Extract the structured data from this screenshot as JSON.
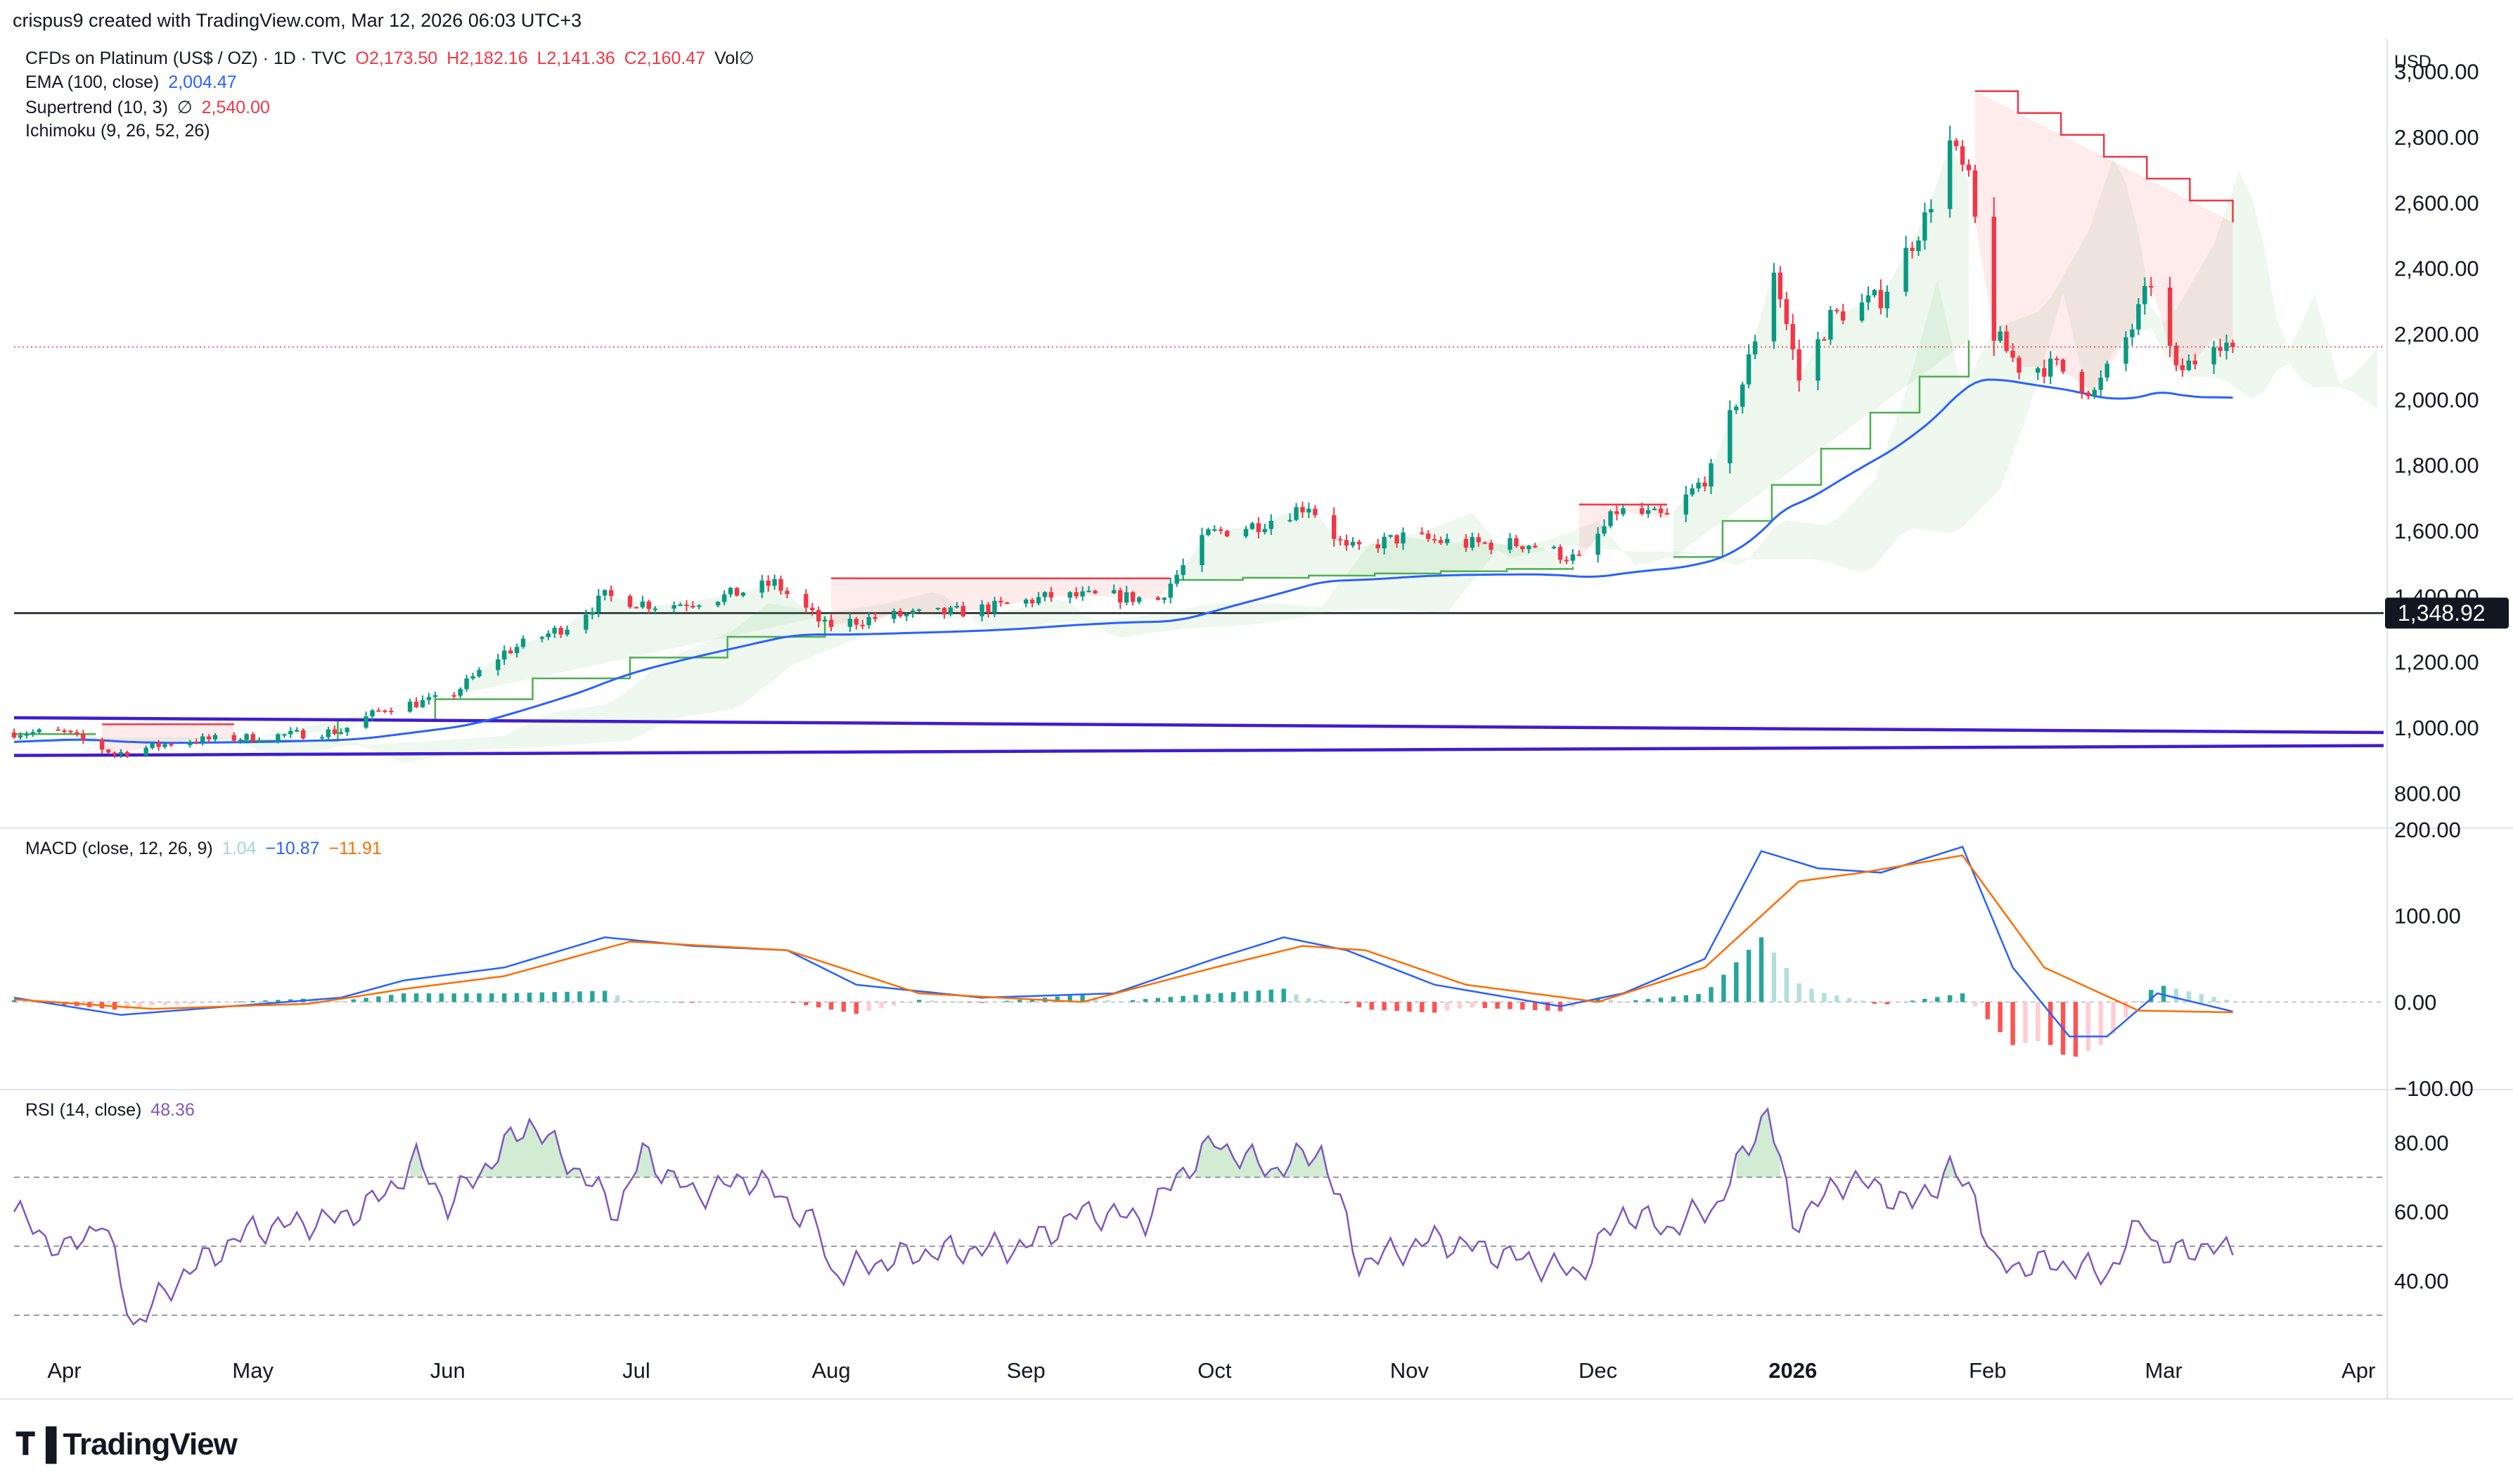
{
  "header": {
    "text": "crispus9 created with TradingView.com, Mar 12, 2026 06:03 UTC+3"
  },
  "legend": {
    "symbol": "CFDs on Platinum (US$ / OZ) · 1D · TVC",
    "ohlc": {
      "o": "O2,173.50",
      "h": "H2,182.16",
      "l": "L2,141.36",
      "c": "C2,160.47",
      "vol": "Vol∅"
    },
    "ema": {
      "label": "EMA (100, close)",
      "value": "2,004.47"
    },
    "supertrend": {
      "label": "Supertrend (10, 3)",
      "dir": "∅",
      "value": "2,540.00"
    },
    "ichimoku": {
      "label": "Ichimoku (9, 26, 52, 26)"
    },
    "macd": {
      "label": "MACD (close, 12, 26, 9)",
      "hist": "1.04",
      "macd": "−10.87",
      "signal": "−11.91"
    },
    "rsi": {
      "label": "RSI (14, close)",
      "value": "48.36"
    }
  },
  "currency_label": "USD",
  "price_marker": "1,348.92",
  "brand": {
    "text": "TradingView"
  },
  "colors": {
    "up": "#089981",
    "down": "#f23645",
    "ema": "#2962ff",
    "signal": "#ff6d00",
    "rsi": "#7e57c2",
    "trendline": "#3f1dcb",
    "supertrend_up": "#4caf50",
    "supertrend_down": "#f23645"
  },
  "chart_data": [
    {
      "type": "candlestick",
      "title": "CFDs on Platinum (US$ / OZ) · 1D · TVC",
      "ylim": [
        700,
        3100
      ],
      "y_ticks": [
        "800.00",
        "1,000.00",
        "1,200.00",
        "1,400.00",
        "1,600.00",
        "1,800.00",
        "2,000.00",
        "2,200.00",
        "2,400.00",
        "2,600.00",
        "2,800.00",
        "3,000.00"
      ],
      "x_ticks": [
        "Apr",
        "May",
        "Jun",
        "Jul",
        "Aug",
        "Sep",
        "Oct",
        "Nov",
        "Dec",
        "2026",
        "Feb",
        "Mar",
        "Apr"
      ],
      "price_keypoints": [
        [
          "2025-03-24",
          985
        ],
        [
          "2025-04-01",
          985
        ],
        [
          "2025-04-09",
          920
        ],
        [
          "2025-04-20",
          960
        ],
        [
          "2025-05-01",
          970
        ],
        [
          "2025-05-15",
          990
        ],
        [
          "2025-05-22",
          1060
        ],
        [
          "2025-06-01",
          1090
        ],
        [
          "2025-06-10",
          1230
        ],
        [
          "2025-06-20",
          1310
        ],
        [
          "2025-06-26",
          1400
        ],
        [
          "2025-07-05",
          1370
        ],
        [
          "2025-07-15",
          1400
        ],
        [
          "2025-07-23",
          1440
        ],
        [
          "2025-07-31",
          1310
        ],
        [
          "2025-08-10",
          1340
        ],
        [
          "2025-08-20",
          1350
        ],
        [
          "2025-08-28",
          1370
        ],
        [
          "2025-09-05",
          1400
        ],
        [
          "2025-09-15",
          1400
        ],
        [
          "2025-09-22",
          1390
        ],
        [
          "2025-09-30",
          1590
        ],
        [
          "2025-10-08",
          1620
        ],
        [
          "2025-10-16",
          1680
        ],
        [
          "2025-10-22",
          1540
        ],
        [
          "2025-10-31",
          1580
        ],
        [
          "2025-11-10",
          1560
        ],
        [
          "2025-11-20",
          1560
        ],
        [
          "2025-11-28",
          1510
        ],
        [
          "2025-12-04",
          1660
        ],
        [
          "2025-12-12",
          1640
        ],
        [
          "2025-12-19",
          1780
        ],
        [
          "2025-12-24",
          2050
        ],
        [
          "2025-12-29",
          2400
        ],
        [
          "2026-01-02",
          2060
        ],
        [
          "2026-01-07",
          2250
        ],
        [
          "2026-01-15",
          2310
        ],
        [
          "2026-01-22",
          2550
        ],
        [
          "2026-01-26",
          2780
        ],
        [
          "2026-01-29",
          2660
        ],
        [
          "2026-02-02",
          2200
        ],
        [
          "2026-02-06",
          2100
        ],
        [
          "2026-02-12",
          2100
        ],
        [
          "2026-02-18",
          2020
        ],
        [
          "2026-02-24",
          2220
        ],
        [
          "2026-02-27",
          2360
        ],
        [
          "2026-03-03",
          2080
        ],
        [
          "2026-03-06",
          2120
        ],
        [
          "2026-03-09",
          2190
        ],
        [
          "2026-03-12",
          2160
        ]
      ],
      "last_ohlc": {
        "open": 2173.5,
        "high": 2182.16,
        "low": 2141.36,
        "close": 2160.47
      },
      "horizontal_line": 1348.92,
      "current_price": 2160.47,
      "series": [
        {
          "name": "EMA (100, close)",
          "last": 2004.47
        },
        {
          "name": "Supertrend (10, 3)",
          "last": 2540.0
        },
        {
          "name": "Ichimoku (9, 26, 52, 26)"
        }
      ],
      "trendlines": [
        {
          "from": [
            "2025-03-24",
            1030
          ],
          "to": [
            "2026-04-05",
            985
          ]
        },
        {
          "from": [
            "2025-03-24",
            915
          ],
          "to": [
            "2026-04-05",
            945
          ]
        }
      ],
      "supertrend_segments": [
        {
          "dir": "up",
          "start": "2025-03-24",
          "end": "2025-04-06",
          "value": 980
        },
        {
          "dir": "down",
          "start": "2025-04-07",
          "end": "2025-04-28",
          "value": 1010
        },
        {
          "dir": "up",
          "start": "2025-04-29",
          "end": "2025-07-31",
          "from": 960,
          "to": 1340
        },
        {
          "dir": "down",
          "start": "2025-08-01",
          "end": "2025-09-24",
          "value": 1455
        },
        {
          "dir": "up",
          "start": "2025-09-25",
          "end": "2025-11-27",
          "from": 1450,
          "to": 1490
        },
        {
          "dir": "down",
          "start": "2025-11-28",
          "end": "2025-12-12",
          "value": 1680
        },
        {
          "dir": "up",
          "start": "2025-12-13",
          "end": "2026-01-29",
          "from": 1520,
          "to": 2180
        },
        {
          "dir": "down",
          "start": "2026-01-30",
          "end": "2026-03-12",
          "from": 2940,
          "to": 2540
        }
      ]
    },
    {
      "type": "line",
      "title": "MACD (close, 12, 26, 9)",
      "ylim": [
        -100,
        200
      ],
      "y_ticks": [
        "−100.00",
        "0.00",
        "100.00",
        "200.00"
      ],
      "series": [
        {
          "name": "MACD",
          "last": -10.87
        },
        {
          "name": "Signal",
          "last": -11.91
        },
        {
          "name": "Histogram",
          "last": 1.04
        }
      ],
      "macd_keypoints": [
        [
          "2025-03-24",
          5
        ],
        [
          "2025-04-10",
          -15
        ],
        [
          "2025-05-01",
          -3
        ],
        [
          "2025-05-15",
          5
        ],
        [
          "2025-05-25",
          25
        ],
        [
          "2025-06-10",
          40
        ],
        [
          "2025-06-26",
          75
        ],
        [
          "2025-07-10",
          65
        ],
        [
          "2025-07-25",
          60
        ],
        [
          "2025-08-05",
          20
        ],
        [
          "2025-08-25",
          5
        ],
        [
          "2025-09-15",
          10
        ],
        [
          "2025-10-01",
          50
        ],
        [
          "2025-10-12",
          75
        ],
        [
          "2025-10-22",
          60
        ],
        [
          "2025-11-05",
          20
        ],
        [
          "2025-11-25",
          -5
        ],
        [
          "2025-12-05",
          10
        ],
        [
          "2025-12-18",
          50
        ],
        [
          "2025-12-27",
          175
        ],
        [
          "2026-01-05",
          155
        ],
        [
          "2026-01-15",
          150
        ],
        [
          "2026-01-28",
          180
        ],
        [
          "2026-02-05",
          40
        ],
        [
          "2026-02-14",
          -40
        ],
        [
          "2026-02-20",
          -40
        ],
        [
          "2026-02-28",
          10
        ],
        [
          "2026-03-12",
          -11
        ]
      ],
      "signal_keypoints": [
        [
          "2025-03-24",
          3
        ],
        [
          "2025-04-15",
          -8
        ],
        [
          "2025-05-10",
          -2
        ],
        [
          "2025-05-25",
          15
        ],
        [
          "2025-06-10",
          30
        ],
        [
          "2025-06-30",
          70
        ],
        [
          "2025-07-25",
          60
        ],
        [
          "2025-08-15",
          10
        ],
        [
          "2025-09-10",
          0
        ],
        [
          "2025-10-01",
          40
        ],
        [
          "2025-10-15",
          65
        ],
        [
          "2025-10-25",
          60
        ],
        [
          "2025-11-10",
          20
        ],
        [
          "2025-12-01",
          0
        ],
        [
          "2025-12-18",
          40
        ],
        [
          "2026-01-02",
          140
        ],
        [
          "2026-01-12",
          150
        ],
        [
          "2026-01-28",
          170
        ],
        [
          "2026-02-10",
          40
        ],
        [
          "2026-02-25",
          -10
        ],
        [
          "2026-03-12",
          -12
        ]
      ]
    },
    {
      "type": "line",
      "title": "RSI (14, close)",
      "ylim": [
        20,
        95
      ],
      "y_ticks": [
        "40.00",
        "60.00",
        "80.00"
      ],
      "bands": [
        30,
        50,
        70
      ],
      "series": [
        {
          "name": "RSI",
          "last": 48.36
        }
      ],
      "rsi_keypoints": [
        [
          "2025-03-24",
          60
        ],
        [
          "2025-04-01",
          48
        ],
        [
          "2025-04-07",
          58
        ],
        [
          "2025-04-12",
          27
        ],
        [
          "2025-04-20",
          42
        ],
        [
          "2025-05-01",
          55
        ],
        [
          "2025-05-15",
          58
        ],
        [
          "2025-05-22",
          65
        ],
        [
          "2025-05-27",
          75
        ],
        [
          "2025-06-01",
          62
        ],
        [
          "2025-06-14",
          86
        ],
        [
          "2025-06-20",
          75
        ],
        [
          "2025-06-28",
          60
        ],
        [
          "2025-07-02",
          77
        ],
        [
          "2025-07-10",
          65
        ],
        [
          "2025-07-20",
          70
        ],
        [
          "2025-07-30",
          55
        ],
        [
          "2025-08-01",
          42
        ],
        [
          "2025-08-15",
          48
        ],
        [
          "2025-09-01",
          50
        ],
        [
          "2025-09-10",
          60
        ],
        [
          "2025-09-20",
          58
        ],
        [
          "2025-09-25",
          70
        ],
        [
          "2025-10-01",
          80
        ],
        [
          "2025-10-10",
          72
        ],
        [
          "2025-10-18",
          78
        ],
        [
          "2025-10-24",
          45
        ],
        [
          "2025-11-05",
          52
        ],
        [
          "2025-11-15",
          48
        ],
        [
          "2025-11-28",
          42
        ],
        [
          "2025-12-05",
          60
        ],
        [
          "2025-12-12",
          55
        ],
        [
          "2025-12-20",
          62
        ],
        [
          "2025-12-28",
          90
        ],
        [
          "2026-01-01",
          57
        ],
        [
          "2026-01-10",
          70
        ],
        [
          "2026-01-20",
          62
        ],
        [
          "2026-01-26",
          72
        ],
        [
          "2026-01-30",
          65
        ],
        [
          "2026-02-02",
          44
        ],
        [
          "2026-02-12",
          45
        ],
        [
          "2026-02-20",
          42
        ],
        [
          "2026-02-26",
          58
        ],
        [
          "2026-03-01",
          46
        ],
        [
          "2026-03-06",
          50
        ],
        [
          "2026-03-12",
          48.36
        ]
      ]
    }
  ]
}
